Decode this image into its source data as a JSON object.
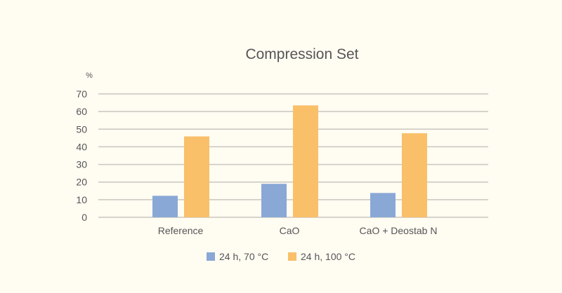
{
  "chart_data": {
    "type": "bar",
    "title": "Compression Set",
    "ylabel": "%",
    "xlabel": "",
    "ylim": [
      0,
      70
    ],
    "yticks": [
      0,
      10,
      20,
      30,
      40,
      50,
      60,
      70
    ],
    "grid": true,
    "legend_position": "bottom",
    "categories": [
      "Reference",
      "CaO",
      "CaO + Deostab N"
    ],
    "series": [
      {
        "name": "24 h, 70 °C",
        "color": "#8aa8d6",
        "values": [
          12.2,
          19.0,
          13.8
        ]
      },
      {
        "name": "24 h, 100 °C",
        "color": "#f9c069",
        "values": [
          45.9,
          63.5,
          47.7
        ]
      }
    ]
  }
}
